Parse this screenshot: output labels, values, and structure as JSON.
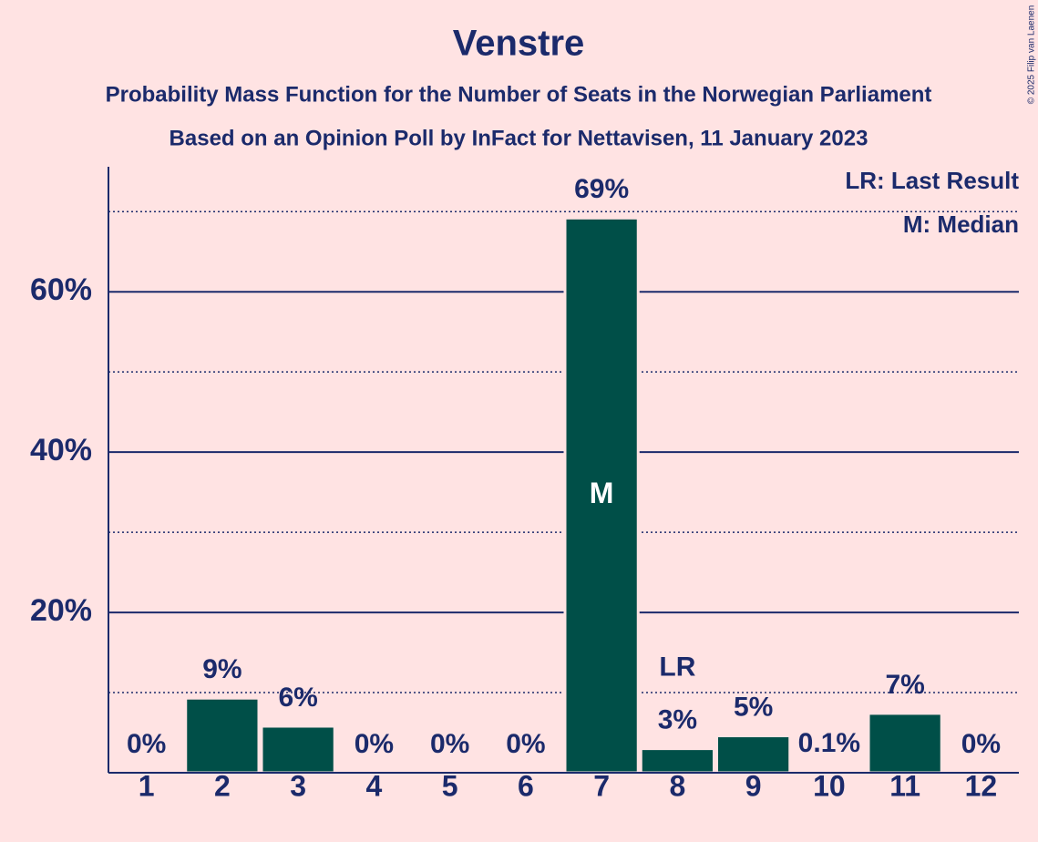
{
  "chart_data": {
    "type": "bar",
    "title": "Venstre",
    "subtitle": [
      "Probability Mass Function for the Number of Seats in the Norwegian Parliament",
      "Based on an Opinion Poll by InFact for Nettavisen, 11 January 2023"
    ],
    "copyright": "© 2025 Filip van Laenen",
    "categories": [
      "1",
      "2",
      "3",
      "4",
      "5",
      "6",
      "7",
      "8",
      "9",
      "10",
      "11",
      "12"
    ],
    "values": [
      0,
      9.3,
      5.8,
      0,
      0,
      0,
      69.2,
      3.0,
      4.6,
      0.1,
      7.4,
      0
    ],
    "value_labels": [
      "0%",
      "9%",
      "6%",
      "0%",
      "0%",
      "0%",
      "69%",
      "3%",
      "5%",
      "0.1%",
      "7%",
      "0%"
    ],
    "color": "#004f48",
    "ylim": [
      0,
      75.6
    ],
    "yticks": [
      {
        "value": 20,
        "label": "20%"
      },
      {
        "value": 40,
        "label": "40%"
      },
      {
        "value": 60,
        "label": "60%"
      }
    ],
    "yminor": [
      10,
      30,
      50,
      70
    ],
    "grid": true,
    "median": "7",
    "median_label": "M",
    "last_result": "8",
    "last_result_label": "LR",
    "legend": [
      "LR: Last Result",
      "M: Median"
    ],
    "legend_position": "upper right"
  }
}
